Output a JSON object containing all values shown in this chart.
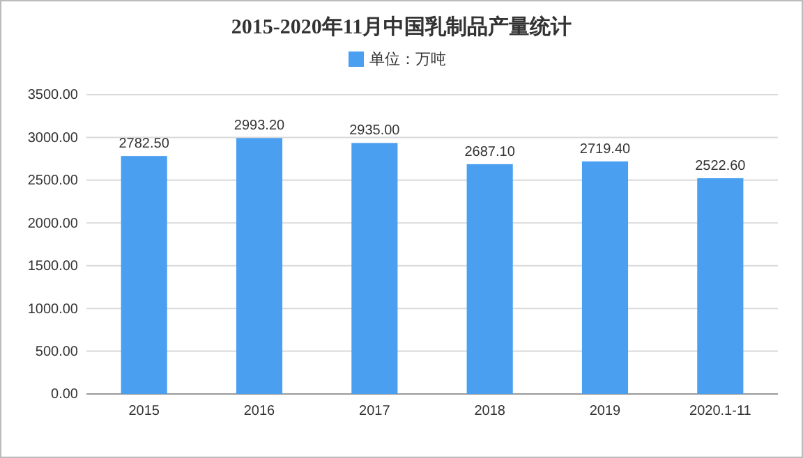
{
  "chart_data": {
    "type": "bar",
    "title": "2015-2020年11月中国乳制品产量统计",
    "categories": [
      "2015",
      "2016",
      "2017",
      "2018",
      "2019",
      "2020.1-11"
    ],
    "series": [
      {
        "name": "单位：万吨",
        "color": "#4a9ff0",
        "values": [
          2782.5,
          2993.2,
          2935.0,
          2687.1,
          2719.4,
          2522.6
        ],
        "value_labels": [
          "2782.50",
          "2993.20",
          "2935.00",
          "2687.10",
          "2719.40",
          "2522.60"
        ]
      }
    ],
    "ylim": [
      0,
      3500
    ],
    "yticks": [
      {
        "value": 0,
        "label": "0.00"
      },
      {
        "value": 500,
        "label": "500.00"
      },
      {
        "value": 1000,
        "label": "1000.00"
      },
      {
        "value": 1500,
        "label": "1500.00"
      },
      {
        "value": 2000,
        "label": "2000.00"
      },
      {
        "value": 2500,
        "label": "2500.00"
      },
      {
        "value": 3000,
        "label": "3000.00"
      },
      {
        "value": 3500,
        "label": "3500.00"
      }
    ],
    "grid": "y",
    "legend": "top"
  }
}
